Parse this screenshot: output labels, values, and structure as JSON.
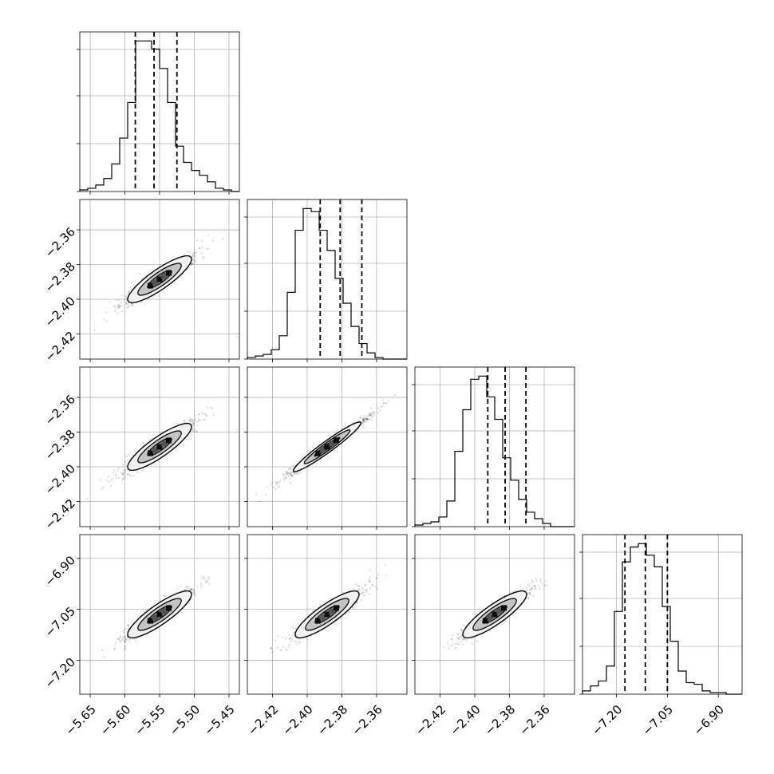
{
  "chart_data": {
    "type": "corner",
    "parameters": 4,
    "quantiles": [
      0.16,
      0.5,
      0.84
    ],
    "grid": true,
    "axes": [
      {
        "range": [
          -5.665,
          -5.435
        ],
        "ticks": [
          -5.65,
          -5.6,
          -5.55,
          -5.5,
          -5.45
        ],
        "tick_labels": [
          "−5.65",
          "−5.60",
          "−5.55",
          "−5.50",
          "−5.45"
        ],
        "quantile_values": [
          -5.585,
          -5.558,
          -5.525
        ]
      },
      {
        "range": [
          -2.4345,
          -2.3425
        ],
        "ticks": [
          -2.42,
          -2.4,
          -2.38,
          -2.36
        ],
        "tick_labels": [
          "−2.42",
          "−2.40",
          "−2.38",
          "−2.36"
        ],
        "quantile_values": [
          -2.3925,
          -2.381,
          -2.3685
        ]
      },
      {
        "range": [
          -2.4345,
          -2.3425
        ],
        "ticks": [
          -2.42,
          -2.4,
          -2.38,
          -2.36
        ],
        "tick_labels": [
          "−2.42",
          "−2.40",
          "−2.38",
          "−2.36"
        ],
        "quantile_values": [
          -2.3925,
          -2.3825,
          -2.3705
        ]
      },
      {
        "range": [
          -7.3,
          -6.83
        ],
        "ticks": [
          -7.2,
          -7.05,
          -6.9
        ],
        "tick_labels": [
          "−7.20",
          "−7.05",
          "−6.90"
        ],
        "quantile_values": [
          -7.175,
          -7.115,
          -7.05
        ]
      }
    ],
    "histograms": [
      {
        "counts": [
          1,
          2,
          4,
          8,
          17,
          33,
          55,
          93,
          93,
          88,
          76,
          55,
          28,
          18,
          13,
          10,
          6,
          2,
          1,
          0
        ]
      },
      {
        "counts": [
          1,
          2,
          3,
          6,
          15,
          43,
          83,
          97,
          95,
          83,
          70,
          52,
          36,
          21,
          10,
          4,
          1,
          0,
          0,
          0
        ]
      },
      {
        "counts": [
          1,
          2,
          3,
          6,
          16,
          47,
          73,
          92,
          94,
          81,
          67,
          43,
          29,
          17,
          9,
          5,
          2,
          0,
          0,
          0
        ]
      },
      {
        "counts": [
          2,
          5,
          8,
          17,
          50,
          80,
          89,
          91,
          84,
          77,
          53,
          32,
          14,
          7,
          6,
          2,
          1,
          1,
          0,
          0
        ]
      }
    ],
    "scatter_samples": 2500,
    "contour_levels": 3
  }
}
